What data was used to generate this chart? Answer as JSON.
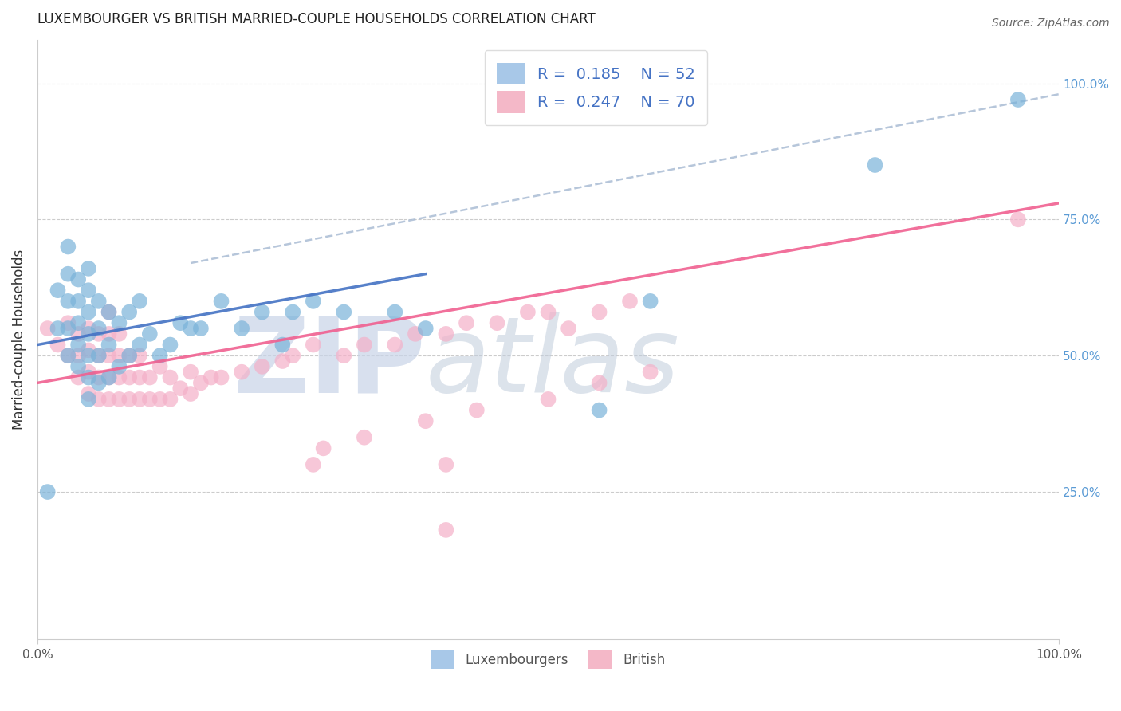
{
  "title": "LUXEMBOURGER VS BRITISH MARRIED-COUPLE HOUSEHOLDS CORRELATION CHART",
  "source": "Source: ZipAtlas.com",
  "ylabel": "Married-couple Households",
  "xlim": [
    0.0,
    1.0
  ],
  "ylim": [
    -0.02,
    1.08
  ],
  "right_ytick_labels": [
    "25.0%",
    "50.0%",
    "75.0%",
    "100.0%"
  ],
  "right_ytick_positions": [
    0.25,
    0.5,
    0.75,
    1.0
  ],
  "lux_color": "#7ab3d9",
  "british_color": "#f4b0c8",
  "lux_line_color": "#4472c4",
  "british_line_color": "#f06090",
  "dashed_line_color": "#aabcd4",
  "watermark_zip": "ZIP",
  "watermark_atlas": "atlas",
  "watermark_color_zip": "#c8d4e8",
  "watermark_color_atlas": "#c8d0e0",
  "lux_R": 0.185,
  "lux_N": 52,
  "british_R": 0.247,
  "british_N": 70,
  "lux_scatter_x": [
    0.01,
    0.02,
    0.02,
    0.03,
    0.03,
    0.03,
    0.03,
    0.03,
    0.04,
    0.04,
    0.04,
    0.04,
    0.04,
    0.05,
    0.05,
    0.05,
    0.05,
    0.05,
    0.05,
    0.05,
    0.06,
    0.06,
    0.06,
    0.06,
    0.07,
    0.07,
    0.07,
    0.08,
    0.08,
    0.09,
    0.09,
    0.1,
    0.1,
    0.11,
    0.12,
    0.13,
    0.14,
    0.15,
    0.16,
    0.18,
    0.2,
    0.22,
    0.24,
    0.25,
    0.27,
    0.3,
    0.35,
    0.38,
    0.55,
    0.6,
    0.82,
    0.96
  ],
  "lux_scatter_y": [
    0.25,
    0.55,
    0.62,
    0.5,
    0.55,
    0.6,
    0.65,
    0.7,
    0.48,
    0.52,
    0.56,
    0.6,
    0.64,
    0.42,
    0.46,
    0.5,
    0.54,
    0.58,
    0.62,
    0.66,
    0.45,
    0.5,
    0.55,
    0.6,
    0.46,
    0.52,
    0.58,
    0.48,
    0.56,
    0.5,
    0.58,
    0.52,
    0.6,
    0.54,
    0.5,
    0.52,
    0.56,
    0.55,
    0.55,
    0.6,
    0.55,
    0.58,
    0.52,
    0.58,
    0.6,
    0.58,
    0.58,
    0.55,
    0.4,
    0.6,
    0.85,
    0.97
  ],
  "british_scatter_x": [
    0.01,
    0.02,
    0.03,
    0.03,
    0.04,
    0.04,
    0.04,
    0.05,
    0.05,
    0.05,
    0.05,
    0.06,
    0.06,
    0.06,
    0.06,
    0.07,
    0.07,
    0.07,
    0.07,
    0.07,
    0.08,
    0.08,
    0.08,
    0.08,
    0.09,
    0.09,
    0.09,
    0.1,
    0.1,
    0.1,
    0.11,
    0.11,
    0.12,
    0.12,
    0.13,
    0.13,
    0.14,
    0.15,
    0.15,
    0.16,
    0.17,
    0.18,
    0.2,
    0.22,
    0.24,
    0.25,
    0.27,
    0.3,
    0.32,
    0.35,
    0.37,
    0.4,
    0.42,
    0.45,
    0.48,
    0.5,
    0.52,
    0.55,
    0.58,
    0.4,
    0.27,
    0.28,
    0.32,
    0.38,
    0.43,
    0.5,
    0.55,
    0.6,
    0.4,
    0.96
  ],
  "british_scatter_y": [
    0.55,
    0.52,
    0.5,
    0.56,
    0.46,
    0.5,
    0.54,
    0.43,
    0.47,
    0.51,
    0.55,
    0.42,
    0.46,
    0.5,
    0.54,
    0.42,
    0.46,
    0.5,
    0.54,
    0.58,
    0.42,
    0.46,
    0.5,
    0.54,
    0.42,
    0.46,
    0.5,
    0.42,
    0.46,
    0.5,
    0.42,
    0.46,
    0.42,
    0.48,
    0.42,
    0.46,
    0.44,
    0.43,
    0.47,
    0.45,
    0.46,
    0.46,
    0.47,
    0.48,
    0.49,
    0.5,
    0.52,
    0.5,
    0.52,
    0.52,
    0.54,
    0.54,
    0.56,
    0.56,
    0.58,
    0.58,
    0.55,
    0.58,
    0.6,
    0.3,
    0.3,
    0.33,
    0.35,
    0.38,
    0.4,
    0.42,
    0.45,
    0.47,
    0.18,
    0.75
  ],
  "lux_line_x0": 0.0,
  "lux_line_x1": 0.38,
  "lux_line_y0": 0.52,
  "lux_line_y1": 0.65,
  "brit_line_x0": 0.0,
  "brit_line_x1": 1.0,
  "brit_line_y0": 0.45,
  "brit_line_y1": 0.78,
  "dashed_line_x0": 0.15,
  "dashed_line_x1": 1.0,
  "dashed_line_y0": 0.67,
  "dashed_line_y1": 0.98
}
